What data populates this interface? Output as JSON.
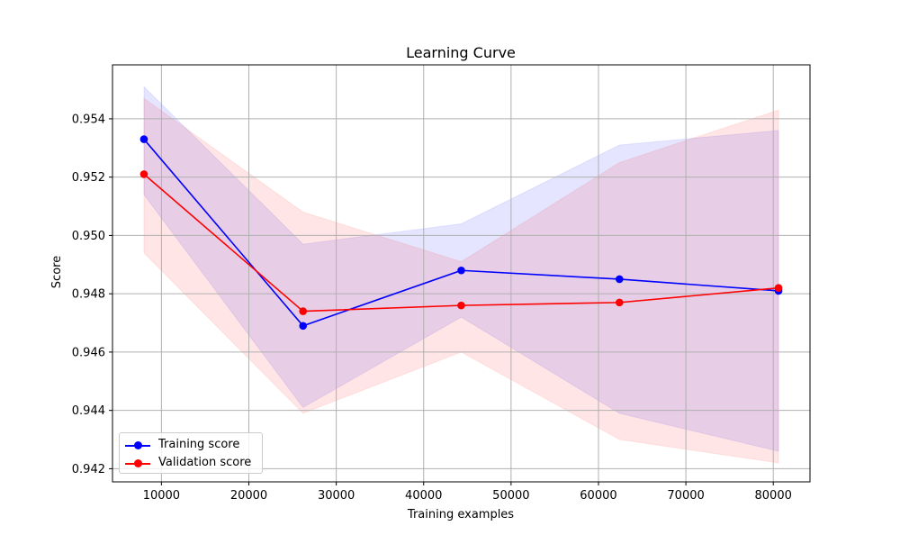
{
  "chart_data": {
    "type": "line",
    "title": "Learning Curve",
    "xlabel": "Training examples",
    "ylabel": "Score",
    "xlim": [
      4400,
      84200
    ],
    "ylim": [
      0.94155,
      0.95585
    ],
    "xticks": [
      10000,
      20000,
      30000,
      40000,
      50000,
      60000,
      70000,
      80000
    ],
    "yticks": [
      0.942,
      0.944,
      0.946,
      0.948,
      0.95,
      0.952,
      0.954
    ],
    "ytick_labels": [
      "0.942",
      "0.944",
      "0.946",
      "0.948",
      "0.950",
      "0.952",
      "0.954"
    ],
    "grid": true,
    "legend_position": "lower-left",
    "x": [
      8000,
      26200,
      44300,
      62400,
      80600
    ],
    "series": [
      {
        "name": "Training score",
        "color": "#0000ff",
        "marker": "circle",
        "values": [
          0.9533,
          0.9469,
          0.9488,
          0.9485,
          0.9481
        ],
        "band_lower": [
          0.9514,
          0.9441,
          0.9472,
          0.9439,
          0.9426
        ],
        "band_upper": [
          0.9551,
          0.9497,
          0.9504,
          0.9531,
          0.9536
        ]
      },
      {
        "name": "Validation score",
        "color": "#ff0000",
        "marker": "circle",
        "values": [
          0.9521,
          0.9474,
          0.9476,
          0.9477,
          0.9482
        ],
        "band_lower": [
          0.9494,
          0.9439,
          0.946,
          0.943,
          0.9422
        ],
        "band_upper": [
          0.9547,
          0.9508,
          0.9491,
          0.9525,
          0.9543
        ]
      }
    ]
  }
}
